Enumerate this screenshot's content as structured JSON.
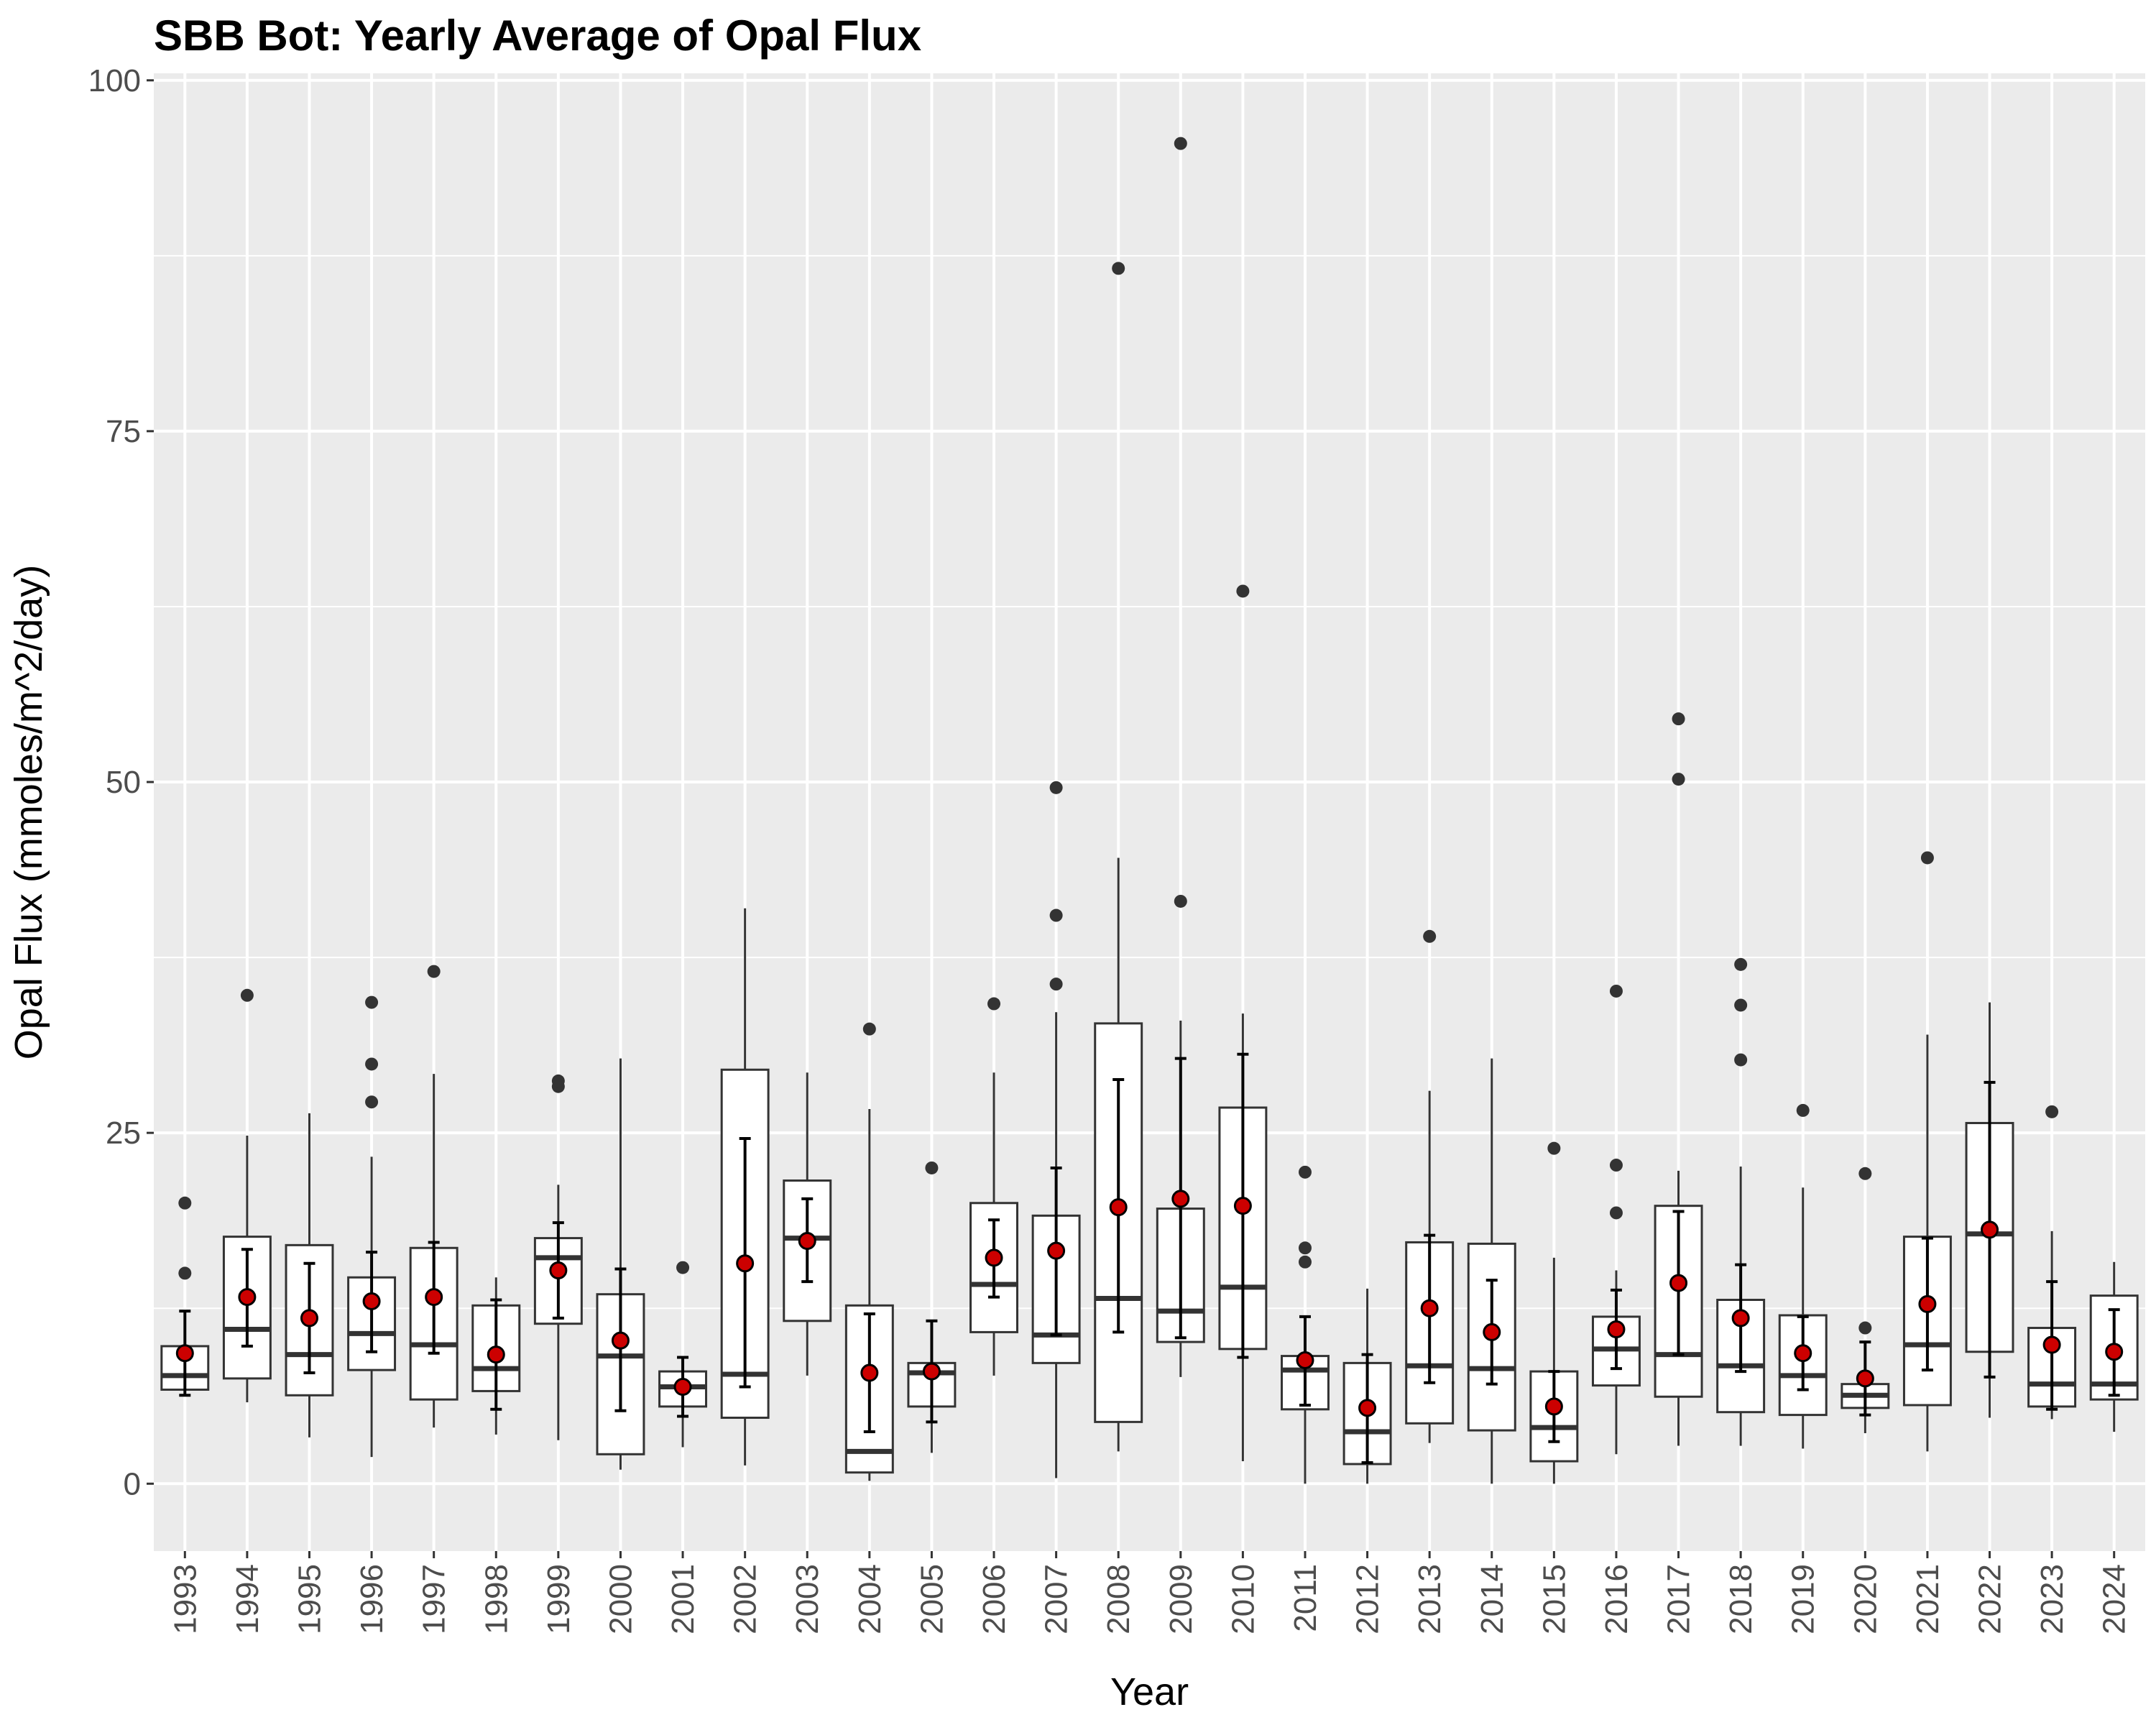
{
  "chart_data": {
    "type": "boxplot",
    "title": "SBB Bot: Yearly Average of Opal Flux",
    "xlabel": "Year",
    "ylabel": "Opal Flux (mmoles/m^2/day)",
    "ylim": [
      -4.8,
      100.5
    ],
    "yticks": [
      0,
      25,
      50,
      75,
      100
    ],
    "grid": true,
    "legend": "none",
    "colors": {
      "panel_bg": "#ebebeb",
      "grid": "#ffffff",
      "box_fill": "#ffffff",
      "box_line": "#333333",
      "mean_point": "#cc0000",
      "outlier": "#333333",
      "errorbar": "#000000"
    },
    "categories": [
      "1993",
      "1994",
      "1995",
      "1996",
      "1997",
      "1998",
      "1999",
      "2000",
      "2001",
      "2002",
      "2003",
      "2004",
      "2005",
      "2006",
      "2007",
      "2008",
      "2009",
      "2010",
      "2011",
      "2012",
      "2013",
      "2014",
      "2015",
      "2016",
      "2017",
      "2018",
      "2019",
      "2020",
      "2021",
      "2022",
      "2023",
      "2024"
    ],
    "boxes": [
      {
        "year": "1993",
        "min": 6.3,
        "q1": 6.7,
        "median": 7.7,
        "q3": 9.8,
        "max": 12.3,
        "mean": 9.3,
        "ci": [
          6.3,
          12.3
        ],
        "outliers": [
          15.0,
          20.0
        ]
      },
      {
        "year": "1994",
        "min": 5.8,
        "q1": 7.5,
        "median": 11.0,
        "q3": 17.6,
        "max": 24.8,
        "mean": 13.3,
        "ci": [
          9.8,
          16.7
        ],
        "outliers": [
          34.8
        ]
      },
      {
        "year": "1995",
        "min": 3.3,
        "q1": 6.3,
        "median": 9.2,
        "q3": 17.0,
        "max": 26.4,
        "mean": 11.8,
        "ci": [
          7.9,
          15.7
        ],
        "outliers": []
      },
      {
        "year": "1996",
        "min": 1.9,
        "q1": 8.1,
        "median": 10.7,
        "q3": 14.7,
        "max": 23.3,
        "mean": 13.0,
        "ci": [
          9.4,
          16.5
        ],
        "outliers": [
          27.2,
          29.9,
          34.3
        ]
      },
      {
        "year": "1997",
        "min": 4.0,
        "q1": 6.0,
        "median": 9.9,
        "q3": 16.8,
        "max": 29.2,
        "mean": 13.3,
        "ci": [
          9.3,
          17.2
        ],
        "outliers": [
          36.5
        ]
      },
      {
        "year": "1998",
        "min": 3.5,
        "q1": 6.6,
        "median": 8.2,
        "q3": 12.7,
        "max": 14.7,
        "mean": 9.2,
        "ci": [
          5.3,
          13.1
        ],
        "outliers": []
      },
      {
        "year": "1999",
        "min": 3.1,
        "q1": 11.4,
        "median": 16.1,
        "q3": 17.5,
        "max": 21.3,
        "mean": 15.2,
        "ci": [
          11.8,
          18.6
        ],
        "outliers": [
          28.3,
          28.7
        ]
      },
      {
        "year": "2000",
        "min": 1.0,
        "q1": 2.1,
        "median": 9.1,
        "q3": 13.5,
        "max": 30.3,
        "mean": 10.2,
        "ci": [
          5.2,
          15.3
        ],
        "outliers": []
      },
      {
        "year": "2001",
        "min": 2.6,
        "q1": 5.5,
        "median": 6.9,
        "q3": 8.0,
        "max": 8.9,
        "mean": 6.9,
        "ci": [
          4.8,
          9.0
        ],
        "outliers": [
          15.4
        ]
      },
      {
        "year": "2002",
        "min": 1.3,
        "q1": 4.7,
        "median": 7.8,
        "q3": 29.5,
        "max": 41.0,
        "mean": 15.7,
        "ci": [
          6.9,
          24.6
        ],
        "outliers": []
      },
      {
        "year": "2003",
        "min": 7.7,
        "q1": 11.6,
        "median": 17.5,
        "q3": 21.6,
        "max": 29.3,
        "mean": 17.3,
        "ci": [
          14.4,
          20.3
        ],
        "outliers": []
      },
      {
        "year": "2004",
        "min": 0.2,
        "q1": 0.8,
        "median": 2.3,
        "q3": 12.7,
        "max": 26.7,
        "mean": 7.9,
        "ci": [
          3.7,
          12.1
        ],
        "outliers": [
          32.4
        ]
      },
      {
        "year": "2005",
        "min": 2.2,
        "q1": 5.5,
        "median": 7.9,
        "q3": 8.6,
        "max": 11.6,
        "mean": 8.0,
        "ci": [
          4.4,
          11.6
        ],
        "outliers": [
          22.5
        ]
      },
      {
        "year": "2006",
        "min": 7.7,
        "q1": 10.8,
        "median": 14.2,
        "q3": 20.0,
        "max": 29.3,
        "mean": 16.1,
        "ci": [
          13.3,
          18.8
        ],
        "outliers": [
          34.2
        ]
      },
      {
        "year": "2007",
        "min": 0.4,
        "q1": 8.6,
        "median": 10.6,
        "q3": 19.1,
        "max": 33.6,
        "mean": 16.6,
        "ci": [
          10.6,
          22.5
        ],
        "outliers": [
          35.6,
          40.5,
          49.6
        ]
      },
      {
        "year": "2008",
        "min": 2.3,
        "q1": 4.4,
        "median": 13.2,
        "q3": 32.8,
        "max": 44.6,
        "mean": 19.7,
        "ci": [
          10.8,
          28.8
        ],
        "outliers": [
          86.6
        ]
      },
      {
        "year": "2009",
        "min": 7.6,
        "q1": 10.1,
        "median": 12.3,
        "q3": 19.6,
        "max": 33.0,
        "mean": 20.3,
        "ci": [
          10.4,
          30.3
        ],
        "outliers": [
          41.5,
          95.5
        ]
      },
      {
        "year": "2010",
        "min": 1.6,
        "q1": 9.6,
        "median": 14.0,
        "q3": 26.8,
        "max": 33.5,
        "mean": 19.8,
        "ci": [
          9.0,
          30.6
        ],
        "outliers": [
          63.6
        ]
      },
      {
        "year": "2011",
        "min": 0.0,
        "q1": 5.3,
        "median": 8.1,
        "q3": 9.1,
        "max": 12.0,
        "mean": 8.8,
        "ci": [
          5.6,
          11.9
        ],
        "outliers": [
          15.8,
          16.8,
          22.2
        ]
      },
      {
        "year": "2012",
        "min": 0.0,
        "q1": 1.4,
        "median": 3.7,
        "q3": 8.6,
        "max": 13.9,
        "mean": 5.4,
        "ci": [
          1.5,
          9.2
        ],
        "outliers": []
      },
      {
        "year": "2013",
        "min": 2.9,
        "q1": 4.3,
        "median": 8.4,
        "q3": 17.2,
        "max": 28.0,
        "mean": 12.5,
        "ci": [
          7.2,
          17.7
        ],
        "outliers": [
          39.0
        ]
      },
      {
        "year": "2014",
        "min": 0.0,
        "q1": 3.8,
        "median": 8.2,
        "q3": 17.1,
        "max": 30.3,
        "mean": 10.8,
        "ci": [
          7.1,
          14.5
        ],
        "outliers": []
      },
      {
        "year": "2015",
        "min": 0.0,
        "q1": 1.6,
        "median": 4.0,
        "q3": 8.0,
        "max": 16.1,
        "mean": 5.5,
        "ci": [
          3.0,
          8.0
        ],
        "outliers": [
          23.9
        ]
      },
      {
        "year": "2016",
        "min": 2.1,
        "q1": 7.0,
        "median": 9.6,
        "q3": 11.9,
        "max": 15.2,
        "mean": 11.0,
        "ci": [
          8.2,
          13.8
        ],
        "outliers": [
          19.3,
          22.7,
          35.1
        ]
      },
      {
        "year": "2017",
        "min": 2.7,
        "q1": 6.2,
        "median": 9.2,
        "q3": 19.8,
        "max": 22.3,
        "mean": 14.3,
        "ci": [
          9.2,
          19.4
        ],
        "outliers": [
          50.2,
          54.5
        ]
      },
      {
        "year": "2018",
        "min": 2.7,
        "q1": 5.1,
        "median": 8.4,
        "q3": 13.1,
        "max": 22.6,
        "mean": 11.8,
        "ci": [
          8.0,
          15.6
        ],
        "outliers": [
          30.2,
          34.1,
          37.0
        ]
      },
      {
        "year": "2019",
        "min": 2.5,
        "q1": 4.9,
        "median": 7.7,
        "q3": 12.0,
        "max": 21.1,
        "mean": 9.3,
        "ci": [
          6.7,
          11.9
        ],
        "outliers": [
          26.6
        ]
      },
      {
        "year": "2020",
        "min": 3.6,
        "q1": 5.4,
        "median": 6.3,
        "q3": 7.1,
        "max": 10.2,
        "mean": 7.5,
        "ci": [
          4.9,
          10.1
        ],
        "outliers": [
          11.1,
          22.1
        ]
      },
      {
        "year": "2021",
        "min": 2.3,
        "q1": 5.6,
        "median": 9.9,
        "q3": 17.6,
        "max": 32.0,
        "mean": 12.8,
        "ci": [
          8.1,
          17.5
        ],
        "outliers": [
          44.6
        ]
      },
      {
        "year": "2022",
        "min": 4.7,
        "q1": 9.4,
        "median": 17.8,
        "q3": 25.7,
        "max": 34.3,
        "mean": 18.1,
        "ci": [
          7.6,
          28.6
        ],
        "outliers": []
      },
      {
        "year": "2023",
        "min": 4.6,
        "q1": 5.5,
        "median": 7.1,
        "q3": 11.1,
        "max": 18.0,
        "mean": 9.9,
        "ci": [
          5.3,
          14.4
        ],
        "outliers": [
          26.5
        ]
      },
      {
        "year": "2024",
        "min": 3.7,
        "q1": 6.0,
        "median": 7.1,
        "q3": 13.4,
        "max": 15.8,
        "mean": 9.4,
        "ci": [
          6.3,
          12.4
        ],
        "outliers": []
      }
    ]
  }
}
